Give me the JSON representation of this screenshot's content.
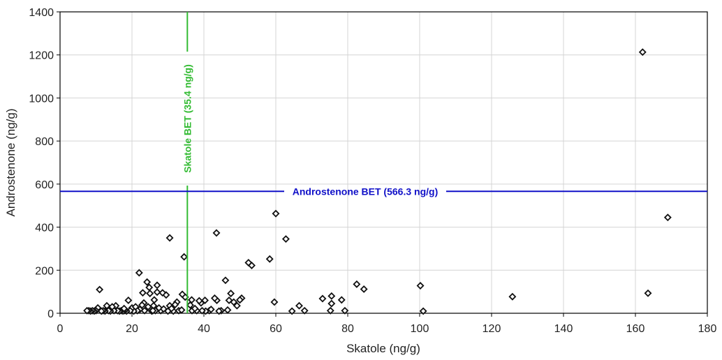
{
  "chart_data": {
    "type": "scatter",
    "xlabel": "Skatole (ng/g)",
    "ylabel": "Androstenone (ng/g)",
    "xlim": [
      0,
      180
    ],
    "ylim": [
      0,
      1400
    ],
    "xticks": [
      0,
      20,
      40,
      60,
      80,
      100,
      120,
      140,
      160,
      180
    ],
    "yticks": [
      0,
      200,
      400,
      600,
      800,
      1000,
      1200,
      1400
    ],
    "grid": true,
    "marker": "diamond",
    "reference_lines": [
      {
        "orientation": "vertical",
        "value": 35.4,
        "label": "Skatole BET (35.4 ng/g)",
        "color": "#33bb33"
      },
      {
        "orientation": "horizontal",
        "value": 566.3,
        "label": "Androstenone BET (566.3 ng/g)",
        "color": "#1010c8"
      }
    ],
    "points": [
      [
        162,
        1213
      ],
      [
        169,
        445
      ],
      [
        163.5,
        93
      ],
      [
        125.8,
        77
      ],
      [
        101,
        10
      ],
      [
        100.2,
        128
      ],
      [
        84.5,
        112
      ],
      [
        82.5,
        135
      ],
      [
        79.2,
        12
      ],
      [
        78.3,
        62
      ],
      [
        75.5,
        80
      ],
      [
        75.5,
        45
      ],
      [
        75.2,
        12
      ],
      [
        73,
        68
      ],
      [
        68,
        12
      ],
      [
        66.5,
        35
      ],
      [
        64.5,
        10
      ],
      [
        62.8,
        345
      ],
      [
        60,
        463
      ],
      [
        59.6,
        52
      ],
      [
        58.3,
        252
      ],
      [
        53.3,
        222
      ],
      [
        52.4,
        235
      ],
      [
        50.5,
        70
      ],
      [
        50,
        62
      ],
      [
        49.2,
        35
      ],
      [
        48.3,
        52
      ],
      [
        47.5,
        92
      ],
      [
        47,
        60
      ],
      [
        46.6,
        15
      ],
      [
        46,
        153
      ],
      [
        44.8,
        12
      ],
      [
        44.2,
        10
      ],
      [
        43.6,
        60
      ],
      [
        43.5,
        373
      ],
      [
        43,
        70
      ],
      [
        41.5,
        12
      ],
      [
        40.5,
        10
      ],
      [
        40.3,
        60
      ],
      [
        39.5,
        12
      ],
      [
        39.2,
        48
      ],
      [
        38.7,
        58
      ],
      [
        38,
        12
      ],
      [
        36.7,
        12
      ],
      [
        36.6,
        62
      ],
      [
        36.2,
        38
      ],
      [
        34.8,
        75
      ],
      [
        34.5,
        262
      ],
      [
        34,
        88
      ],
      [
        33,
        12
      ],
      [
        32.5,
        52
      ],
      [
        32,
        40
      ],
      [
        31.5,
        10
      ],
      [
        30.5,
        350
      ],
      [
        30.5,
        35
      ],
      [
        30,
        10
      ],
      [
        29.5,
        85
      ],
      [
        28.5,
        95
      ],
      [
        28,
        12
      ],
      [
        27.5,
        25
      ],
      [
        27,
        130
      ],
      [
        27,
        98
      ],
      [
        26.5,
        12
      ],
      [
        26,
        35
      ],
      [
        25.5,
        10
      ],
      [
        25,
        92
      ],
      [
        24.8,
        120
      ],
      [
        24.5,
        30
      ],
      [
        24.2,
        145
      ],
      [
        23.5,
        12
      ],
      [
        23.3,
        48
      ],
      [
        23,
        95
      ],
      [
        22.8,
        38
      ],
      [
        22.2,
        18
      ],
      [
        22,
        188
      ],
      [
        21.5,
        12
      ],
      [
        20.5,
        10
      ],
      [
        20,
        25
      ],
      [
        19.5,
        12
      ],
      [
        19,
        60
      ],
      [
        18.5,
        10
      ],
      [
        18,
        12
      ],
      [
        17.5,
        10
      ],
      [
        17,
        12
      ],
      [
        16.5,
        10
      ],
      [
        16,
        12
      ],
      [
        15.5,
        35
      ],
      [
        15,
        12
      ],
      [
        14.5,
        30
      ],
      [
        14,
        10
      ],
      [
        13.5,
        12
      ],
      [
        13,
        35
      ],
      [
        12.5,
        10
      ],
      [
        12,
        12
      ],
      [
        11.5,
        10
      ],
      [
        11,
        110
      ],
      [
        10.5,
        25
      ],
      [
        10,
        12
      ],
      [
        9.5,
        10
      ],
      [
        9,
        12
      ],
      [
        8.5,
        10
      ],
      [
        8,
        12
      ],
      [
        7.5,
        12
      ],
      [
        25.8,
        12
      ],
      [
        28.8,
        20
      ],
      [
        31,
        22
      ],
      [
        33.8,
        15
      ],
      [
        37.5,
        22
      ],
      [
        42,
        18
      ],
      [
        21,
        30
      ],
      [
        17.8,
        22
      ],
      [
        26.2,
        62
      ]
    ]
  }
}
